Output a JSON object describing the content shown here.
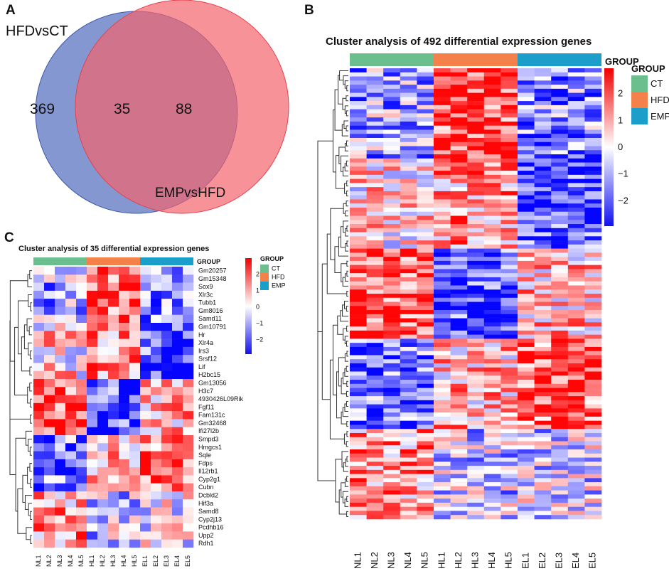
{
  "panels": {
    "a": "A",
    "b": "B",
    "c": "C"
  },
  "venn": {
    "left_label": "HFDvsCT",
    "right_label": "EMPvsHFD",
    "left_only": "369",
    "both": "35",
    "right_only": "88",
    "left_color": "#5b74c0",
    "right_color": "#f2646c"
  },
  "chart_data": [
    {
      "type": "venn",
      "sets": [
        "HFDvsCT",
        "EMPvsHFD"
      ],
      "values": {
        "HFDvsCT_only": 369,
        "intersection": 35,
        "EMPvsHFD_only": 88
      }
    },
    {
      "type": "heatmap",
      "title": "Cluster analysis of 492 differential expression genes",
      "n_genes": 492,
      "columns": [
        "NL1",
        "NL2",
        "NL3",
        "NL4",
        "NL5",
        "HL1",
        "HL2",
        "HL3",
        "HL4",
        "HL5",
        "EL1",
        "EL2",
        "EL3",
        "EL4",
        "EL5"
      ],
      "group_label": "GROUP",
      "groups": [
        {
          "name": "CT",
          "color": "#6bbf8f"
        },
        {
          "name": "HFD",
          "color": "#f4804a"
        },
        {
          "name": "EMP",
          "color": "#1b9ec9"
        }
      ],
      "colorbar_ticks": [
        "2",
        "1",
        "0",
        "−1",
        "−2"
      ],
      "range": [
        -3,
        3
      ]
    },
    {
      "type": "heatmap",
      "title": "Cluster analysis of 35 differential expression genes",
      "columns": [
        "NL1",
        "NL2",
        "NL3",
        "NL4",
        "NL5",
        "HL1",
        "HL2",
        "HL3",
        "HL4",
        "HL5",
        "EL1",
        "EL2",
        "EL3",
        "EL4",
        "EL5"
      ],
      "rows": [
        "Gm20257",
        "Gm15348",
        "Sox9",
        "Xlr3c",
        "Tubb1",
        "Gm8016",
        "Samd11",
        "Gm10791",
        "Hr",
        "Xlr4a",
        "Irs3",
        "Srsf12",
        "Lif",
        "H2bc15",
        "Gm13056",
        "H3c7",
        "4930426L09Rik",
        "Fgf11",
        "Fam131c",
        "Gm32468",
        "Ifi27l2b",
        "Smpd3",
        "Hmgcs1",
        "Sqle",
        "Fdps",
        "Il12rb1",
        "Cyp2g1",
        "Cubn",
        "Dcbld2",
        "Hif3a",
        "Samd8",
        "Cyp2j13",
        "Pcdhb16",
        "Upp2",
        "Rdh1"
      ],
      "group_label": "GROUP",
      "groups": [
        {
          "name": "CT",
          "color": "#6bbf8f"
        },
        {
          "name": "HFD",
          "color": "#f4804a"
        },
        {
          "name": "EMP",
          "color": "#1b9ec9"
        }
      ],
      "colorbar_ticks": [
        "2",
        "1",
        "0",
        "−1",
        "−2"
      ],
      "range": [
        -2.3,
        2.3
      ]
    }
  ]
}
